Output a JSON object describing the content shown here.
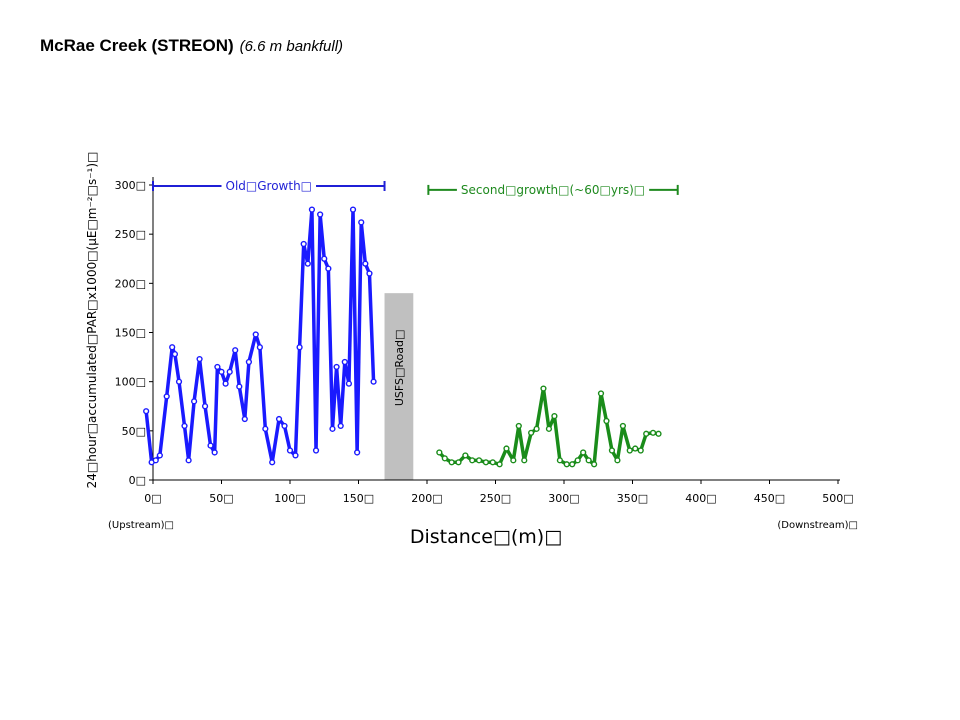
{
  "title": {
    "main": "McRae Creek (STREON)",
    "sub": "(6.6 m bankfull)"
  },
  "chart_data": {
    "type": "line",
    "xlabel": "Distance□(m)□",
    "ylabel": "24□hour□accumulated□PAR□x1000□(μE□m⁻²□s⁻¹)□",
    "xlim": [
      0,
      500
    ],
    "ylim": [
      0,
      300
    ],
    "x_ticks": [
      0,
      50,
      100,
      150,
      200,
      250,
      300,
      350,
      400,
      450,
      500
    ],
    "x_tick_labels": [
      "0□",
      "50□",
      "100□",
      "150□",
      "200□",
      "250□",
      "300□",
      "350□",
      "400□",
      "450□",
      "500□"
    ],
    "y_ticks": [
      0,
      50,
      100,
      150,
      200,
      250,
      300
    ],
    "y_tick_labels": [
      "0□",
      "50□",
      "100□",
      "150□",
      "200□",
      "250□",
      "300□"
    ],
    "x_start_label": "(Upstream)□",
    "x_end_label": "(Downstream)□",
    "road": {
      "label": "USFS□Road□",
      "x0": 169,
      "x1": 190,
      "height": 190,
      "color": "#c0c0c0"
    },
    "ranges": [
      {
        "label": "Old□Growth□",
        "x0": 0,
        "x1": 169,
        "y": 299,
        "color": "#1f1fd6"
      },
      {
        "label": "Second□growth□(~60□yrs)□",
        "x0": 201,
        "x1": 383,
        "y": 295,
        "color": "#1f8a1f"
      }
    ],
    "series": [
      {
        "color": "#1a1aff",
        "x": [
          -5,
          -1,
          2,
          5,
          10,
          14,
          16,
          19,
          23,
          26,
          30,
          34,
          38,
          42,
          45,
          47,
          50,
          53,
          56,
          60,
          63,
          67,
          70,
          75,
          78,
          82,
          87,
          92,
          96,
          100,
          104,
          107,
          110,
          113,
          116,
          119,
          122,
          125,
          128,
          131,
          134,
          137,
          140,
          143,
          146,
          149,
          152,
          155,
          158,
          161
        ],
        "y": [
          70,
          18,
          20,
          25,
          85,
          135,
          128,
          100,
          55,
          20,
          80,
          123,
          75,
          35,
          28,
          115,
          110,
          98,
          110,
          132,
          95,
          62,
          120,
          148,
          135,
          52,
          18,
          62,
          55,
          30,
          25,
          135,
          240,
          220,
          275,
          30,
          270,
          225,
          215,
          52,
          115,
          55,
          120,
          98,
          275,
          28,
          262,
          220,
          210,
          100
        ]
      },
      {
        "color": "#1a8c1a",
        "x": [
          209,
          213,
          218,
          223,
          228,
          233,
          238,
          243,
          248,
          253,
          258,
          263,
          267,
          271,
          276,
          280,
          285,
          289,
          293,
          297,
          302,
          306,
          310,
          314,
          318,
          322,
          327,
          331,
          335,
          339,
          343,
          348,
          352,
          356,
          360,
          365,
          369
        ],
        "y": [
          28,
          22,
          18,
          18,
          25,
          20,
          20,
          18,
          18,
          16,
          32,
          20,
          55,
          20,
          48,
          52,
          93,
          52,
          65,
          20,
          16,
          16,
          20,
          28,
          20,
          16,
          88,
          60,
          30,
          20,
          55,
          30,
          32,
          30,
          47,
          48,
          47
        ]
      }
    ]
  }
}
